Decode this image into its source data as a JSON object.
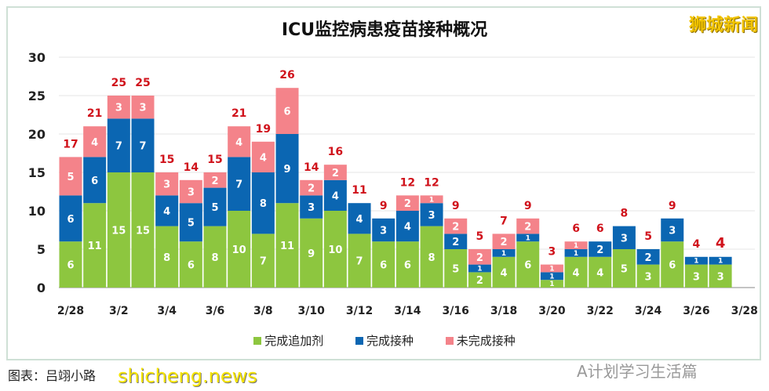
{
  "brand": "狮城新闻",
  "credit": "图表：吕翊小路",
  "watermark": "shicheng.news",
  "wechat": "A计划学习生活篇",
  "colors": {
    "booster": "#8dc63f",
    "complete": "#0b66b2",
    "incomplete": "#f4838a",
    "total_label": "#d0121b"
  },
  "chart_data": {
    "type": "bar",
    "stacked": true,
    "title": "ICU监控病患疫苗接种概况",
    "ylim": [
      0,
      30
    ],
    "yticks": [
      0,
      5,
      10,
      15,
      20,
      25,
      30
    ],
    "xticklabels": [
      "2/28",
      "3/2",
      "3/4",
      "3/6",
      "3/8",
      "3/10",
      "3/12",
      "3/14",
      "3/16",
      "3/18",
      "3/20",
      "3/22",
      "3/24",
      "3/26",
      "3/28"
    ],
    "categories": [
      "2/28",
      "3/1",
      "3/2",
      "3/3",
      "3/4",
      "3/5",
      "3/6",
      "3/7",
      "3/8",
      "3/9",
      "3/10",
      "3/11",
      "3/12",
      "3/13",
      "3/14",
      "3/15",
      "3/16",
      "3/17",
      "3/18",
      "3/19",
      "3/20",
      "3/21",
      "3/22",
      "3/23",
      "3/24",
      "3/25",
      "3/26",
      "3/27"
    ],
    "series": [
      {
        "name": "完成追加剂",
        "values": [
          6,
          11,
          15,
          15,
          8,
          6,
          8,
          10,
          7,
          11,
          9,
          10,
          7,
          6,
          6,
          8,
          5,
          2,
          4,
          6,
          1,
          4,
          4,
          5,
          3,
          6,
          3,
          3
        ]
      },
      {
        "name": "完成接种",
        "values": [
          6,
          6,
          7,
          7,
          4,
          5,
          5,
          7,
          8,
          9,
          3,
          4,
          4,
          3,
          4,
          3,
          2,
          1,
          1,
          1,
          1,
          1,
          2,
          3,
          2,
          3,
          1,
          1
        ]
      },
      {
        "name": "未完成接种",
        "values": [
          5,
          4,
          3,
          3,
          3,
          3,
          2,
          4,
          4,
          6,
          2,
          2,
          0,
          0,
          2,
          1,
          2,
          2,
          2,
          2,
          1,
          1,
          0,
          0,
          0,
          0,
          0,
          0
        ]
      }
    ],
    "totals": [
      17,
      21,
      25,
      25,
      15,
      14,
      15,
      21,
      19,
      26,
      14,
      16,
      11,
      9,
      12,
      12,
      9,
      5,
      7,
      9,
      3,
      6,
      6,
      8,
      5,
      9,
      4,
      4
    ],
    "legend": "bottom",
    "grid": true
  }
}
